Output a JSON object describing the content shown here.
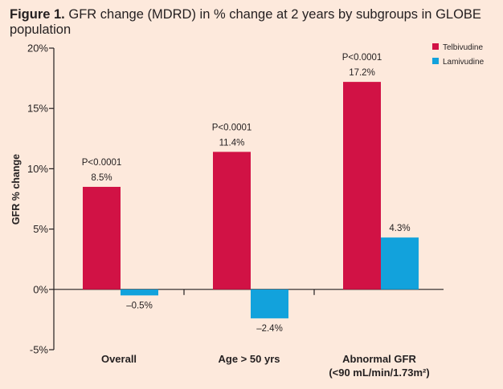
{
  "title": {
    "prefix": "Figure 1.",
    "text": "GFR change (MDRD) in % change at 2 years by subgroups in GLOBE population"
  },
  "colors": {
    "background": "#fde9dc",
    "telbivudine": "#d11245",
    "lamivudine": "#12a2dc",
    "axis": "#231f20"
  },
  "chart_data": {
    "type": "bar",
    "title": "GFR change (MDRD) in % change at 2 years by subgroups in GLOBE population",
    "xlabel": "",
    "ylabel": "GFR % change",
    "ylim": [
      -5,
      20
    ],
    "yticks": [
      20,
      15,
      10,
      5,
      0,
      -5
    ],
    "ytick_labels": [
      "20%",
      "15%",
      "10%",
      "5%",
      "0%",
      "-5%"
    ],
    "categories": [
      "Overall",
      "Age > 50 yrs",
      "Abnormal GFR"
    ],
    "category_sublabels": [
      "",
      "",
      "(<90 mL/min/1.73m²)"
    ],
    "legend_position": "top-right",
    "series": [
      {
        "name": "Telbivudine",
        "values": [
          8.5,
          11.4,
          17.2
        ],
        "value_labels": [
          "8.5%",
          "11.4%",
          "17.2%"
        ],
        "annotations": [
          "P<0.0001",
          "P<0.0001",
          "P<0.0001"
        ]
      },
      {
        "name": "Lamivudine",
        "values": [
          -0.5,
          -2.4,
          4.3
        ],
        "value_labels": [
          "–0.5%",
          "–2.4%",
          "4.3%"
        ]
      }
    ]
  }
}
